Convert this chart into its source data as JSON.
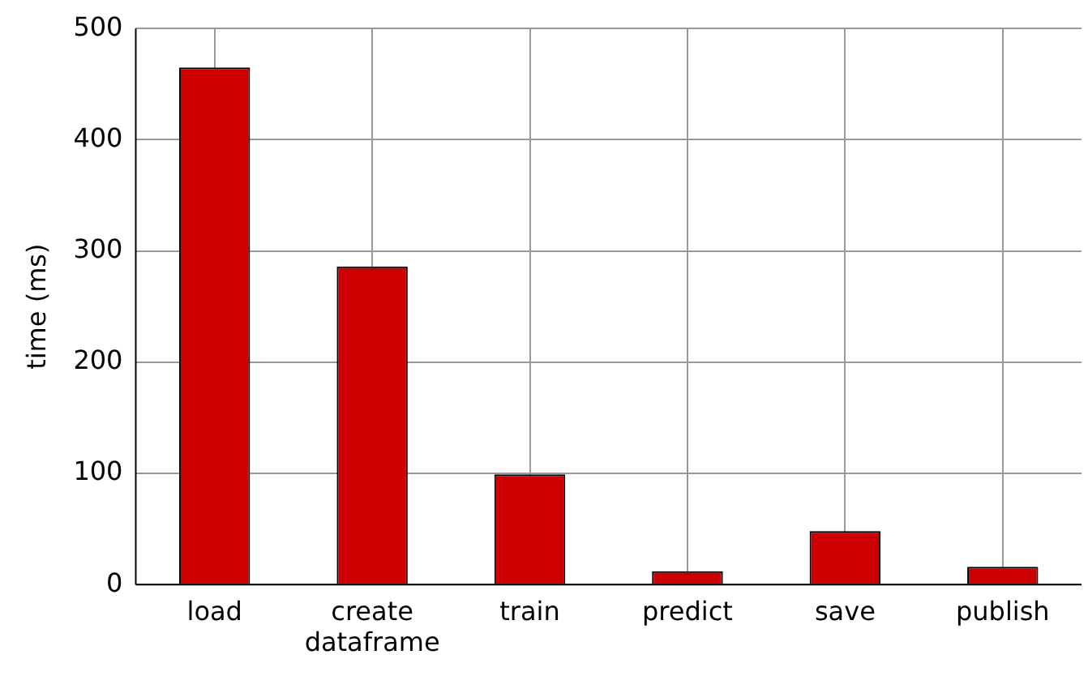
{
  "chart_data": {
    "type": "bar",
    "ylabel": "time (ms)",
    "categories": [
      "load",
      "create dataframe",
      "train",
      "predict",
      "save",
      "publish"
    ],
    "values": [
      465,
      286,
      99,
      12,
      48,
      16
    ],
    "color": "#cc0000",
    "ylim": [
      0,
      500
    ],
    "yticks": [
      0,
      100,
      200,
      300,
      400,
      500
    ],
    "grid": true
  }
}
